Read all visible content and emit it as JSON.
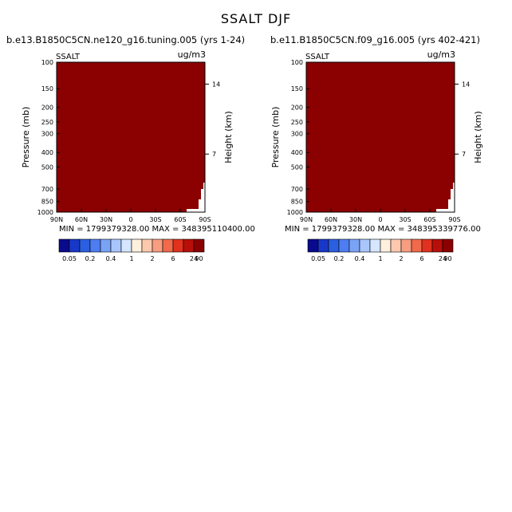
{
  "title": "SSALT DJF",
  "colors": {
    "fill": "#8b0000",
    "colorbar": [
      "#0a0a8c",
      "#1838c8",
      "#2a5fe0",
      "#4d7df0",
      "#7aa3f5",
      "#a8c6fb",
      "#d6e6ff",
      "#fff0dc",
      "#fcc8ae",
      "#f79d80",
      "#f06a4b",
      "#e0321e",
      "#b80f0a",
      "#8b0000"
    ]
  },
  "colorbar_labels": [
    "0.05",
    "0.2",
    "0.4",
    "1",
    "2",
    "6",
    "24",
    "90"
  ],
  "panels": [
    {
      "header": "b.e13.B1850C5CN.ne120_g16.tuning.005 (yrs 1-24)",
      "var_label": "SSALT",
      "units": "ug/m3",
      "ylabel": "Pressure (mb)",
      "right_label": "Height (km)",
      "stats": "MIN = 1799379328.00   MAX = 348395110400.00"
    },
    {
      "header": "b.e11.B1850C5CN.f09_g16.005 (yrs 402-421)",
      "var_label": "SSALT",
      "units": "ug/m3",
      "ylabel": "Pressure (mb)",
      "right_label": "Height (km)",
      "stats": "MIN = 1799379328.00   MAX = 348395339776.00"
    }
  ],
  "chart_data": [
    {
      "type": "heatmap",
      "title": "SSALT DJF",
      "x_ticks": [
        "90N",
        "60N",
        "30N",
        "0",
        "30S",
        "60S",
        "90S"
      ],
      "y_ticks": [
        "100",
        "150",
        "200",
        "250",
        "300",
        "400",
        "500",
        "700",
        "850",
        "1000"
      ],
      "y_tick_values": [
        100,
        150,
        200,
        250,
        300,
        400,
        500,
        700,
        850,
        1000
      ],
      "y_scale": "log",
      "ylim": [
        1000,
        100
      ],
      "right_ticks": [
        "14",
        "7"
      ],
      "right_tick_pressures": [
        140,
        410
      ],
      "xlim": [
        90,
        -90
      ]
    },
    {
      "type": "heatmap",
      "title": "SSALT DJF",
      "x_ticks": [
        "90N",
        "60N",
        "30N",
        "0",
        "30S",
        "60S",
        "90S"
      ],
      "y_ticks": [
        "100",
        "150",
        "200",
        "250",
        "300",
        "400",
        "500",
        "700",
        "850",
        "1000"
      ],
      "y_tick_values": [
        100,
        150,
        200,
        250,
        300,
        400,
        500,
        700,
        850,
        1000
      ],
      "y_scale": "log",
      "ylim": [
        1000,
        100
      ],
      "right_ticks": [
        "14",
        "7"
      ],
      "right_tick_pressures": [
        140,
        410
      ],
      "xlim": [
        90,
        -90
      ]
    }
  ]
}
